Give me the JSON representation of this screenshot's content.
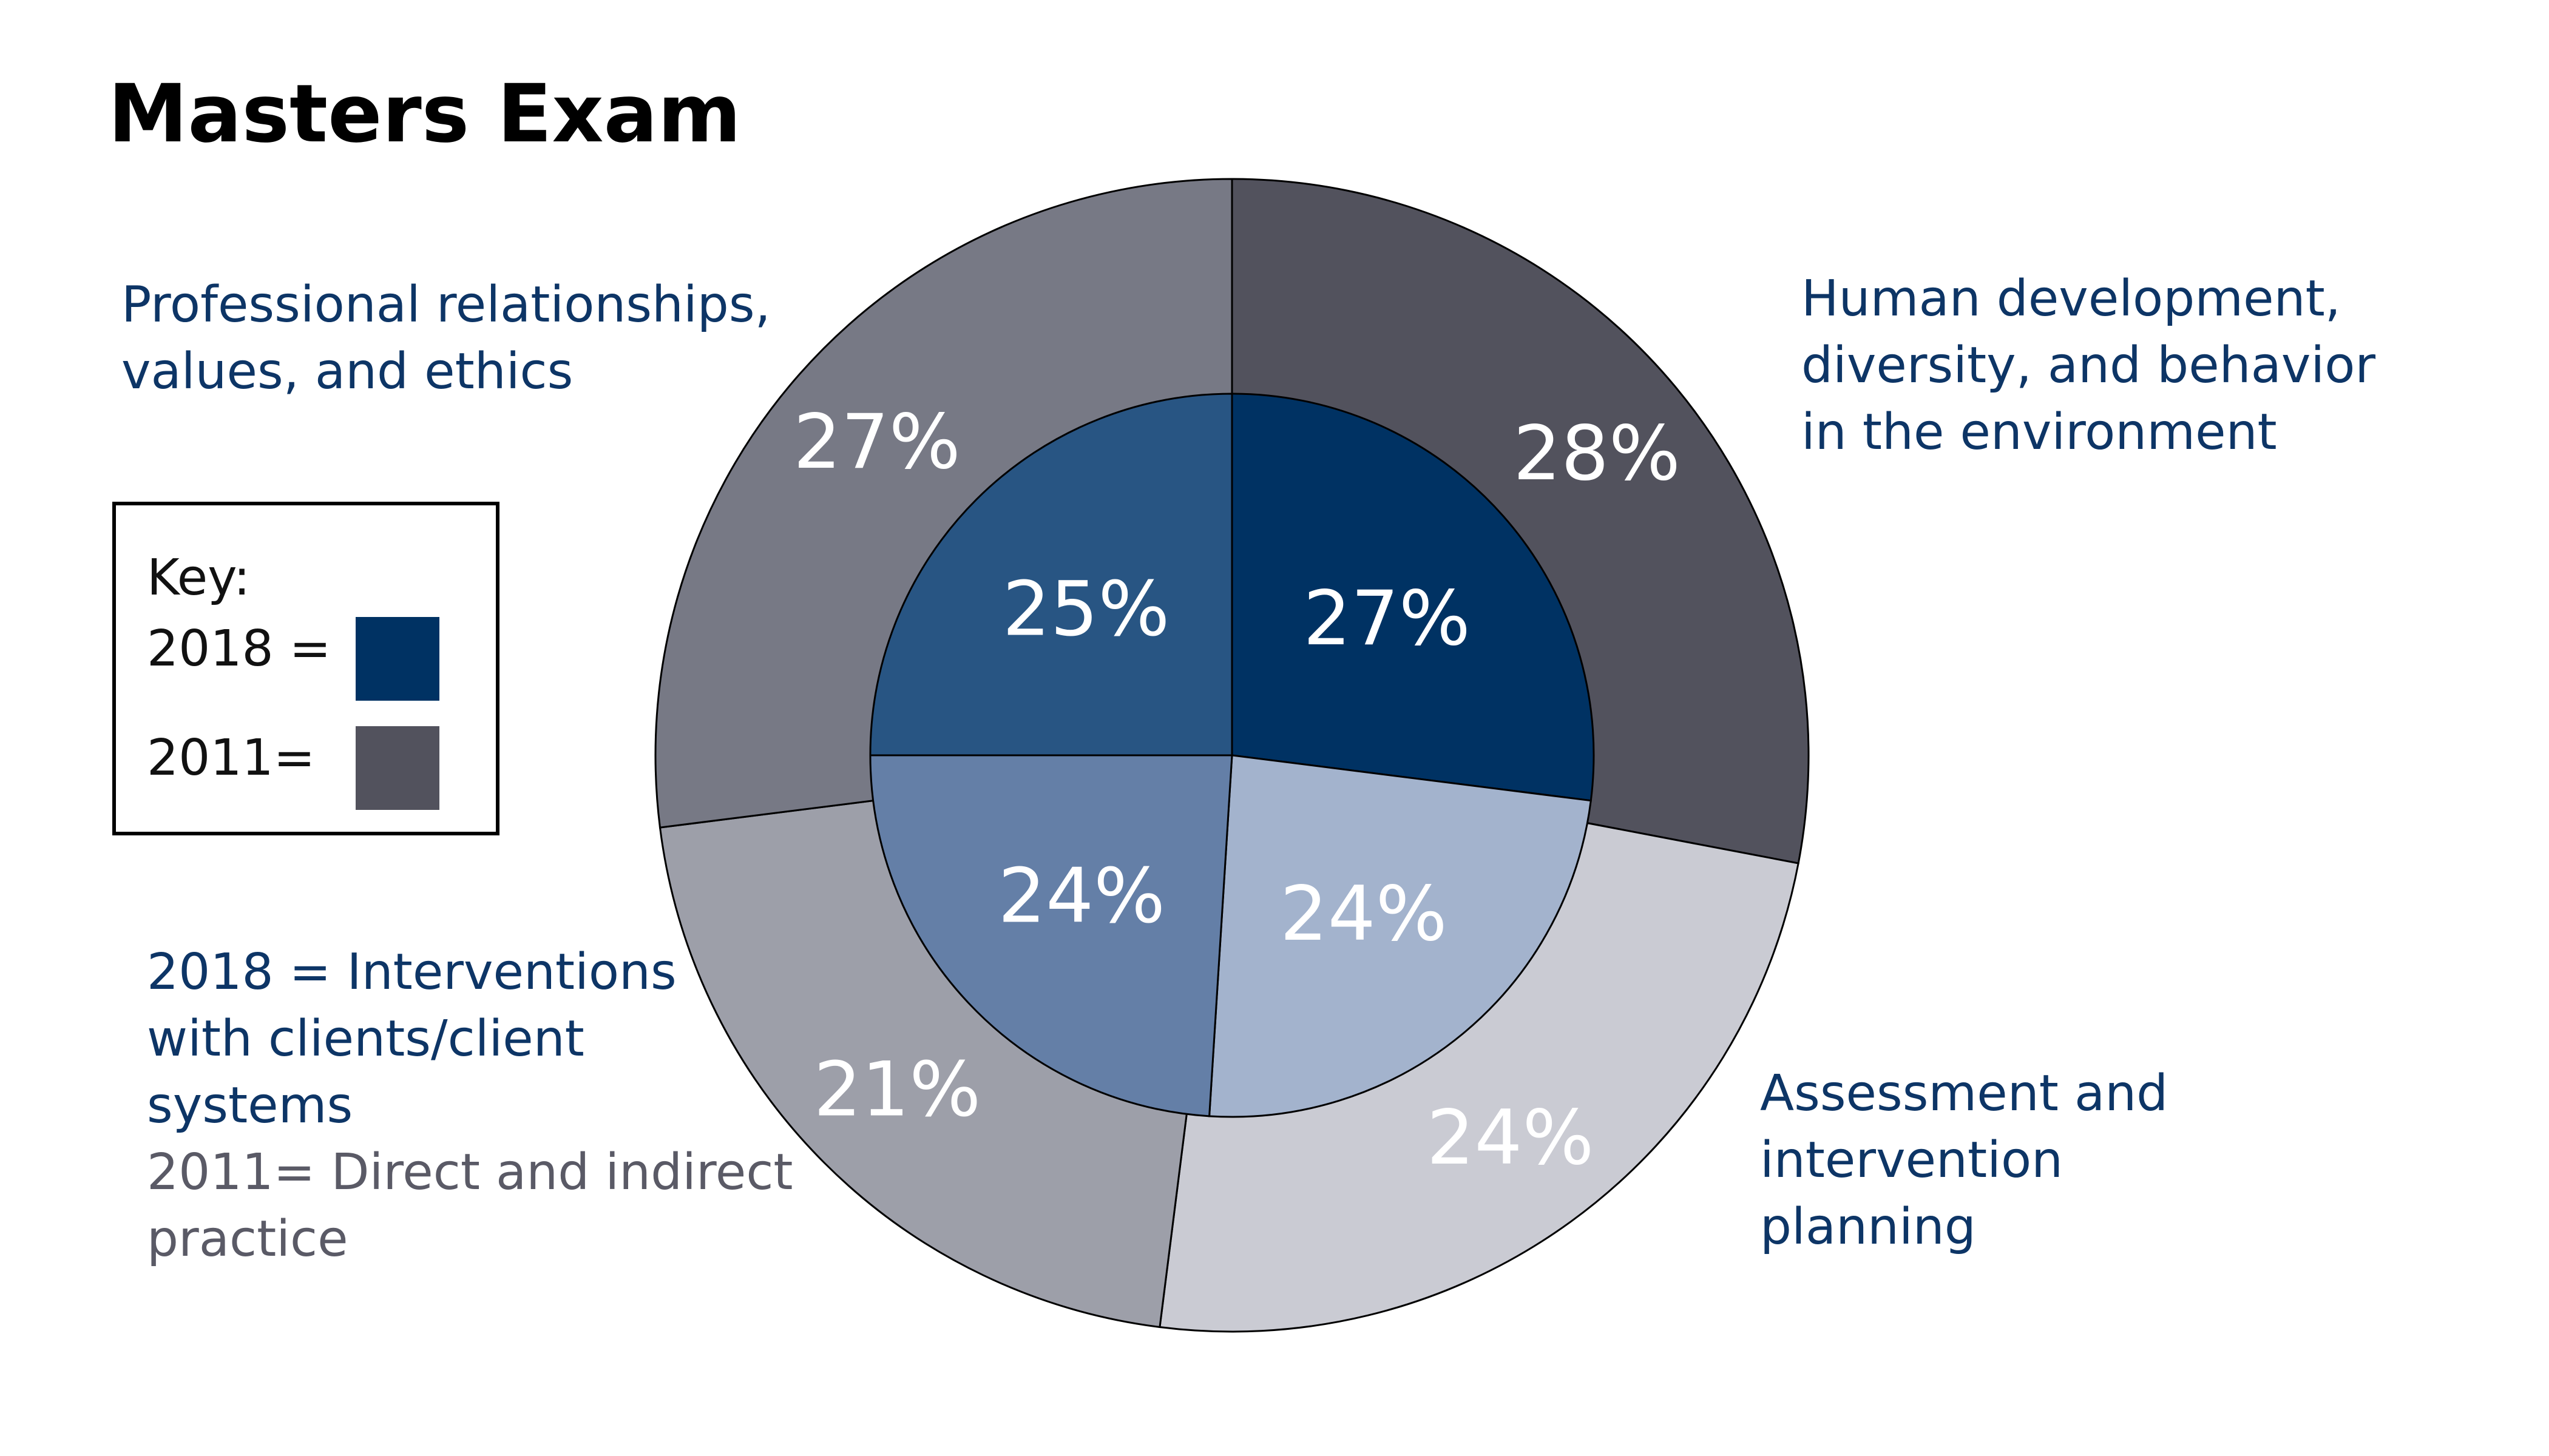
{
  "chart_data": {
    "type": "pie",
    "title": "Masters Exam",
    "categories": [
      "Human development, diversity, and behavior in the environment",
      "Assessment and intervention planning",
      "Interventions with clients/client systems / Direct and indirect practice",
      "Professional relationships, values, and ethics"
    ],
    "series": [
      {
        "name": "2018",
        "values": [
          27,
          24,
          24,
          25
        ]
      },
      {
        "name": "2011",
        "values": [
          28,
          24,
          21,
          27
        ]
      }
    ],
    "slice_labels": {
      "2018": [
        "27%",
        "24%",
        "24%",
        "25%"
      ],
      "2011": [
        "28%",
        "24%",
        "21%",
        "27%"
      ]
    },
    "colors": {
      "2018": [
        "#003263",
        "#a3b3cd",
        "#647fa7",
        "#285583"
      ],
      "2011": [
        "#52525d",
        "#cacbd3",
        "#9d9fa9",
        "#777985"
      ]
    },
    "legend": {
      "heading": "Key:",
      "entries": [
        {
          "label": "2018 =",
          "color": "#003263"
        },
        {
          "label": "2011=",
          "color": "#52525d"
        }
      ],
      "placement": "left"
    }
  },
  "annotations": {
    "top_right": [
      "Human development,",
      "diversity, and behavior",
      "in the environment"
    ],
    "bottom_right": [
      "Assessment and",
      "intervention",
      "planning"
    ],
    "top_left": [
      "Professional relationships,",
      "values, and ethics"
    ],
    "bottom_left_2018": [
      "2018 = Interventions",
      "with clients/client",
      "systems"
    ],
    "bottom_left_2011": [
      "2011= Direct and indirect",
      "practice"
    ]
  }
}
